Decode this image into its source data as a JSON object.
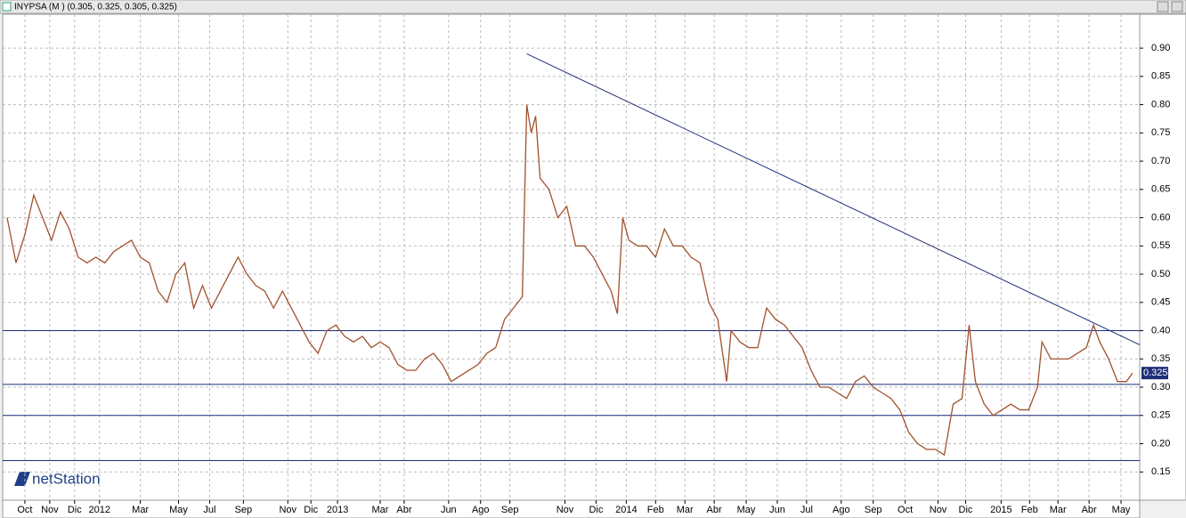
{
  "chart_data": {
    "type": "line",
    "title": "INYPSA (M ) (0.305, 0.325, 0.305, 0.325)",
    "watermark": "netStation",
    "ylim": [
      0.1,
      0.96
    ],
    "yticks": [
      0.15,
      {
        "value": 0.2,
        "label": "0.20"
      },
      0.25,
      {
        "value": 0.3,
        "label": "0.30"
      },
      0.35,
      {
        "value": 0.4,
        "label": "0.40"
      },
      0.45,
      {
        "value": 0.5,
        "label": "0.50"
      },
      0.55,
      {
        "value": 0.6,
        "label": "0.60"
      },
      0.65,
      {
        "value": 0.7,
        "label": "0.70"
      },
      0.75,
      {
        "value": 0.8,
        "label": "0.80"
      },
      0.85,
      {
        "value": 0.9,
        "label": "0.90"
      }
    ],
    "xlim": [
      0,
      1280
    ],
    "xticks": [
      {
        "value": 25,
        "label": "Oct"
      },
      {
        "value": 53,
        "label": "Nov"
      },
      {
        "value": 81,
        "label": "Dic"
      },
      {
        "value": 109,
        "label": "2012"
      },
      {
        "value": 155,
        "label": "Mar"
      },
      {
        "value": 198,
        "label": "May"
      },
      {
        "value": 233,
        "label": "Jul"
      },
      {
        "value": 271,
        "label": "Sep"
      },
      {
        "value": 321,
        "label": "Nov"
      },
      {
        "value": 347,
        "label": "Dic"
      },
      {
        "value": 377,
        "label": "2013"
      },
      {
        "value": 425,
        "label": "Mar"
      },
      {
        "value": 452,
        "label": "Abr"
      },
      {
        "value": 502,
        "label": "Jun"
      },
      {
        "value": 538,
        "label": "Ago"
      },
      {
        "value": 571,
        "label": "Sep"
      },
      {
        "value": 633,
        "label": "Nov"
      },
      {
        "value": 668,
        "label": "Dic"
      },
      {
        "value": 702,
        "label": "2014"
      },
      {
        "value": 735,
        "label": "Feb"
      },
      {
        "value": 768,
        "label": "Mar"
      },
      {
        "value": 801,
        "label": "Abr"
      },
      {
        "value": 837,
        "label": "May"
      },
      {
        "value": 872,
        "label": "Jun"
      },
      {
        "value": 905,
        "label": "Jul"
      },
      {
        "value": 944,
        "label": "Ago"
      },
      {
        "value": 980,
        "label": "Sep"
      },
      {
        "value": 1016,
        "label": "Oct"
      },
      {
        "value": 1053,
        "label": "Nov"
      },
      {
        "value": 1084,
        "label": "Dic"
      },
      {
        "value": 1124,
        "label": "2015"
      },
      {
        "value": 1156,
        "label": "Feb"
      },
      {
        "value": 1188,
        "label": "Mar"
      },
      {
        "value": 1223,
        "label": "Abr"
      },
      {
        "value": 1259,
        "label": "May"
      }
    ],
    "grid": true,
    "series": [
      {
        "name": "INYPSA",
        "color": "#a0522d",
        "x": [
          5,
          15,
          25,
          35,
          45,
          55,
          65,
          75,
          85,
          95,
          105,
          115,
          125,
          135,
          145,
          155,
          165,
          175,
          185,
          195,
          205,
          215,
          225,
          235,
          245,
          255,
          265,
          275,
          285,
          295,
          305,
          315,
          325,
          335,
          345,
          355,
          365,
          375,
          385,
          395,
          405,
          415,
          425,
          435,
          445,
          455,
          465,
          475,
          485,
          495,
          505,
          515,
          525,
          535,
          545,
          555,
          565,
          575,
          585,
          590,
          595,
          600,
          605,
          615,
          625,
          635,
          645,
          655,
          665,
          675,
          685,
          692,
          698,
          705,
          715,
          725,
          735,
          745,
          755,
          765,
          775,
          785,
          795,
          805,
          815,
          820,
          830,
          840,
          850,
          860,
          870,
          880,
          890,
          900,
          910,
          920,
          930,
          940,
          950,
          960,
          970,
          980,
          990,
          1000,
          1010,
          1020,
          1030,
          1040,
          1050,
          1060,
          1070,
          1080,
          1088,
          1095,
          1105,
          1115,
          1125,
          1135,
          1145,
          1155,
          1165,
          1170,
          1180,
          1190,
          1200,
          1210,
          1220,
          1228,
          1235,
          1245,
          1255,
          1265,
          1272
        ],
        "values": [
          0.6,
          0.52,
          0.57,
          0.64,
          0.6,
          0.56,
          0.61,
          0.58,
          0.53,
          0.52,
          0.53,
          0.52,
          0.54,
          0.55,
          0.56,
          0.53,
          0.52,
          0.47,
          0.45,
          0.5,
          0.52,
          0.44,
          0.48,
          0.44,
          0.47,
          0.5,
          0.53,
          0.5,
          0.48,
          0.47,
          0.44,
          0.47,
          0.44,
          0.41,
          0.38,
          0.36,
          0.4,
          0.41,
          0.39,
          0.38,
          0.39,
          0.37,
          0.38,
          0.37,
          0.34,
          0.33,
          0.33,
          0.35,
          0.36,
          0.34,
          0.31,
          0.32,
          0.33,
          0.34,
          0.36,
          0.37,
          0.42,
          0.44,
          0.46,
          0.8,
          0.75,
          0.78,
          0.67,
          0.65,
          0.6,
          0.62,
          0.55,
          0.55,
          0.53,
          0.5,
          0.47,
          0.43,
          0.6,
          0.56,
          0.55,
          0.55,
          0.53,
          0.58,
          0.55,
          0.55,
          0.53,
          0.52,
          0.45,
          0.42,
          0.31,
          0.4,
          0.38,
          0.37,
          0.37,
          0.44,
          0.42,
          0.41,
          0.39,
          0.37,
          0.33,
          0.3,
          0.3,
          0.29,
          0.28,
          0.31,
          0.32,
          0.3,
          0.29,
          0.28,
          0.26,
          0.22,
          0.2,
          0.19,
          0.19,
          0.18,
          0.27,
          0.28,
          0.41,
          0.31,
          0.27,
          0.25,
          0.26,
          0.27,
          0.26,
          0.26,
          0.3,
          0.38,
          0.35,
          0.35,
          0.35,
          0.36,
          0.37,
          0.41,
          0.38,
          0.35,
          0.31,
          0.31,
          0.325
        ]
      }
    ],
    "levels": [
      0.4,
      0.305,
      0.25,
      0.17
    ],
    "level_color": "#1f2f7a",
    "trendline": {
      "x": [
        590,
        1280
      ],
      "y": [
        0.89,
        0.375
      ]
    },
    "last_value": 0.325
  }
}
